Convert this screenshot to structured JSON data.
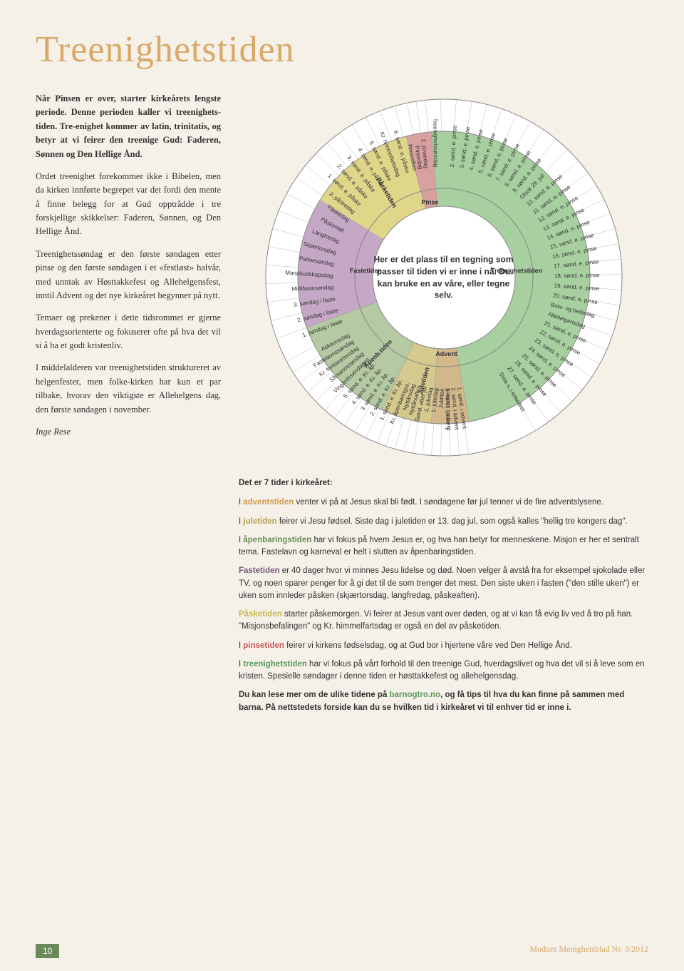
{
  "title": "Treenighetstiden",
  "article": {
    "p1": "Når Pinsen er over, starter kirkeårets lengste periode. Denne perioden kaller vi treenighets-tiden. Tre-enighet kommer av latin, trinitatis, og betyr at vi feirer den treenige Gud: Faderen, Sønnen og Den Hellige Ånd.",
    "p2": "Ordet treenighet forekommer ikke i Bibelen, men da kirken innførte begrepet var det fordi den mente å finne belegg for at Gud opptrådde i tre forskjellige skikkelser: Faderen, Sønnen, og Den Hellige Ånd.",
    "p3": "Treenighetssøndag er den første søndagen etter pinse og den første søndagen i et «festløst» halvår, med unntak av Høsttakkefest og Allehelgensfest, inntil Advent og det nye kirkeåret begynner på nytt.",
    "p4": "Temaer og prekener i dette tidsrommet er gjerne hverdagsorienterte og fokuserer ofte på hva det vil si å ha et godt kristenliv.",
    "p5": "I middelalderen var treenighetstiden struktureret av helgenfester, men folke-kirken har kun et par tilbake, hvorav den viktigste er Allehelgens dag, den første søndagen i november.",
    "author": "Inge Rese"
  },
  "wheel": {
    "center": "Her er det plass til en tegning som passer til tiden vi er inne i nå. Du kan bruke en av våre, eller tegne selv.",
    "ring_outer_r": 250,
    "ring_mid_r": 205,
    "ring_inner_r": 125,
    "ring_core_r": 100,
    "label_r_outer": 155,
    "label_r_section": 107,
    "bg": "#ffffff",
    "sections": [
      {
        "name": "Advent",
        "color": "#d3b88c",
        "start": 265,
        "end": 280
      },
      {
        "name": "Juletiden",
        "color": "#d6c98e",
        "start": 245,
        "end": 265
      },
      {
        "name": "Åpenb.tiden",
        "color": "#b5c9a3",
        "start": 200,
        "end": 245
      },
      {
        "name": "Fastetiden",
        "color": "#c5a8c5",
        "start": 148,
        "end": 200
      },
      {
        "name": "Påsketiden",
        "color": "#e0d68a",
        "start": 105,
        "end": 148
      },
      {
        "name": "Pinse",
        "color": "#d9a0a0",
        "start": 95,
        "end": 105
      },
      {
        "name": "Treenighetstiden",
        "color": "#a8cfa0",
        "start": -80,
        "end": 95
      }
    ],
    "days": [
      {
        "a": 278,
        "t": "1. sønd. i advent"
      },
      {
        "a": 275,
        "t": "2. sønd. i advent"
      },
      {
        "a": 272,
        "t": "3. sønd. i advent"
      },
      {
        "a": 269,
        "t": "4. sønd. i advent"
      },
      {
        "a": 266,
        "t": "Julaften"
      },
      {
        "a": 263,
        "t": "1. juledag"
      },
      {
        "a": 260,
        "t": "2. juledag"
      },
      {
        "a": 257,
        "t": "Sønd. etter jul"
      },
      {
        "a": 254,
        "t": "Nyttårsaften"
      },
      {
        "a": 251,
        "t": "Nyttårsdag"
      },
      {
        "a": 248,
        "t": "Kr. åpenbaringss."
      },
      {
        "a": 244,
        "t": "1. sønd. e. Kr. åp."
      },
      {
        "a": 240,
        "t": "2. sønd. e. Kr. åp."
      },
      {
        "a": 236,
        "t": "3. sønd. e. Kr. åp."
      },
      {
        "a": 232,
        "t": "4. sønd. e. Kr. åp."
      },
      {
        "a": 228,
        "t": "5. sønd. e. Kr. åp."
      },
      {
        "a": 224,
        "t": "Vingårdssøndagen"
      },
      {
        "a": 220,
        "t": "Såmannssøndag"
      },
      {
        "a": 216,
        "t": "Kr. forklarelsesdag"
      },
      {
        "a": 212,
        "t": "Fastelavnssøndag"
      },
      {
        "a": 208,
        "t": "Askeonsdag"
      },
      {
        "a": 200,
        "t": "1. søndag i faste"
      },
      {
        "a": 194,
        "t": "2. søndag i faste"
      },
      {
        "a": 188,
        "t": "3. søndag i faste"
      },
      {
        "a": 182,
        "t": "Midtfastesøndag"
      },
      {
        "a": 176,
        "t": "Mariabudskapsdag"
      },
      {
        "a": 170,
        "t": "Palmesøndag"
      },
      {
        "a": 164,
        "t": "Skjærtorsdag"
      },
      {
        "a": 158,
        "t": "Langfredag"
      },
      {
        "a": 152,
        "t": "Påskenatt"
      },
      {
        "a": 146,
        "t": "Påskedag"
      },
      {
        "a": 141,
        "t": "2. påskedag"
      },
      {
        "a": 136,
        "t": "1. sønd. e. påske"
      },
      {
        "a": 131,
        "t": "2. sønd. e. påske"
      },
      {
        "a": 126,
        "t": "3. sønd. e. påske"
      },
      {
        "a": 121,
        "t": "4. sønd. e. påske"
      },
      {
        "a": 116,
        "t": "5. sønd. e. påske"
      },
      {
        "a": 111,
        "t": "Kr. himmelfartsdag"
      },
      {
        "a": 106,
        "t": "6. sønd. e. påske"
      },
      {
        "a": 102,
        "t": "Pinseaften"
      },
      {
        "a": 99,
        "t": "Pinsedag"
      },
      {
        "a": 96,
        "t": "2. pinsedag"
      },
      {
        "a": 91,
        "t": "Treenighetssøndag"
      },
      {
        "a": 86,
        "t": "2. sønd. e. pinse"
      },
      {
        "a": 81,
        "t": "3. sønd. e. pinse"
      },
      {
        "a": 76,
        "t": "4. sønd. e. pinse"
      },
      {
        "a": 71,
        "t": "5. sønd. e. pinse"
      },
      {
        "a": 66,
        "t": "6. sønd. e. pinse"
      },
      {
        "a": 61,
        "t": "7. sønd. e. pinse"
      },
      {
        "a": 56,
        "t": "8. sønd. e. pinse"
      },
      {
        "a": 51,
        "t": "9. sønd. e. pinse"
      },
      {
        "a": 46,
        "t": "Olsok 29. juli"
      },
      {
        "a": 41,
        "t": "10. sønd. e. pinse"
      },
      {
        "a": 36,
        "t": "11. sønd. e. pinse"
      },
      {
        "a": 31,
        "t": "12. sønd. e. pinse"
      },
      {
        "a": 26,
        "t": "13. sønd. e. pinse"
      },
      {
        "a": 21,
        "t": "14. sønd. e. pinse"
      },
      {
        "a": 16,
        "t": "15. sønd. e. pinse"
      },
      {
        "a": 11,
        "t": "16. sønd. e. pinse"
      },
      {
        "a": 6,
        "t": "17. sønd. e. pinse"
      },
      {
        "a": 1,
        "t": "18. sønd. e. pinse"
      },
      {
        "a": -4,
        "t": "19. sønd. e. pinse"
      },
      {
        "a": -9,
        "t": "20. sønd. e. pinse"
      },
      {
        "a": -14,
        "t": "Bots- og bededag"
      },
      {
        "a": -19,
        "t": "Allehelgensdag"
      },
      {
        "a": -24,
        "t": "21. sønd. e. pinse"
      },
      {
        "a": -29,
        "t": "22. sønd. e. pinse"
      },
      {
        "a": -34,
        "t": "23. sønd. e. pinse"
      },
      {
        "a": -39,
        "t": "24. sønd. e. pinse"
      },
      {
        "a": -44,
        "t": "25. sønd. e. pinse"
      },
      {
        "a": -49,
        "t": "26. sønd. e. pinse"
      },
      {
        "a": -54,
        "t": "27. sønd. e. pinse"
      },
      {
        "a": -59,
        "t": "Siste s. i kirkeåret"
      }
    ],
    "section_labels": [
      {
        "a": 272,
        "t": "Advent",
        "norot": true
      },
      {
        "a": 255,
        "t": "Juletiden"
      },
      {
        "a": 225,
        "t": "Åpenb.tiden"
      },
      {
        "a": 175,
        "t": "Fastetiden",
        "norot": true
      },
      {
        "a": 120,
        "t": "Påsketiden"
      },
      {
        "a": 100,
        "t": "Pinse",
        "norot": true
      },
      {
        "a": 5,
        "t": "Treenighetstiden",
        "norot": true
      }
    ]
  },
  "below": {
    "heading": "Det er 7 tider i kirkeåret:",
    "items": [
      {
        "key": "adventstiden",
        "cls": "advent",
        "pre": "I ",
        "text": " venter vi på at Jesus skal bli født. I søndagene før jul tenner vi de fire adventslysene."
      },
      {
        "key": "juletiden",
        "cls": "jule",
        "pre": "I ",
        "text": " feirer vi Jesu fødsel. Siste dag i juletiden er 13. dag jul, som også kalles \"hellig tre kongers dag\"."
      },
      {
        "key": "åpenbaringstiden",
        "cls": "apen",
        "pre": "I ",
        "text": " har vi fokus på hvem Jesus er, og hva han betyr for menneskene. Misjon er her et sentralt tema. Fastelavn og karneval er helt i slutten av åpenbaringstiden."
      },
      {
        "key": "Fastetiden",
        "cls": "faste",
        "pre": "",
        "text": " er 40 dager hvor vi minnes Jesu lidelse og død. Noen velger å avstå fra for eksempel sjokolade eller TV, og noen sparer penger for å gi det til de som trenger det mest. Den siste uken i fasten (\"den stille uken\") er uken som innleder påsken (skjærtorsdag, langfredag, påskeaften)."
      },
      {
        "key": "Påsketiden",
        "cls": "paske",
        "pre": "",
        "text": " starter påskemorgen. Vi feirer at Jesus vant over døden, og at vi kan få evig liv ved å tro på han. \"Misjonsbefalingen\" og Kr. himmelfartsdag er også en del av påsketiden."
      },
      {
        "key": "pinsetiden",
        "cls": "pinse",
        "pre": "I ",
        "text": " feirer vi kirkens fødselsdag, og at Gud bor i hjertene våre ved Den Hellige Ånd."
      },
      {
        "key": "treenighetstiden",
        "cls": "treenig",
        "pre": "I ",
        "text": " har vi fokus på vårt forhold til den treenige Gud, hverdagslivet og hva det vil si å leve som en kristen. Spesielle søndager i denne tiden er høsttakkefest og allehelgensdag."
      }
    ],
    "footer_note_pre": "Du kan lese mer om de ulike tidene på ",
    "footer_link": "barnogtro.no",
    "footer_note_post": ", og få tips til hva du kan finne på sammen med barna. På nettstedets forside kan du se hvilken tid i kirkeåret vi til enhver tid er inne i."
  },
  "footer": {
    "page": "10",
    "right": "Modum Menighetsblad Nr. 3/2012"
  }
}
